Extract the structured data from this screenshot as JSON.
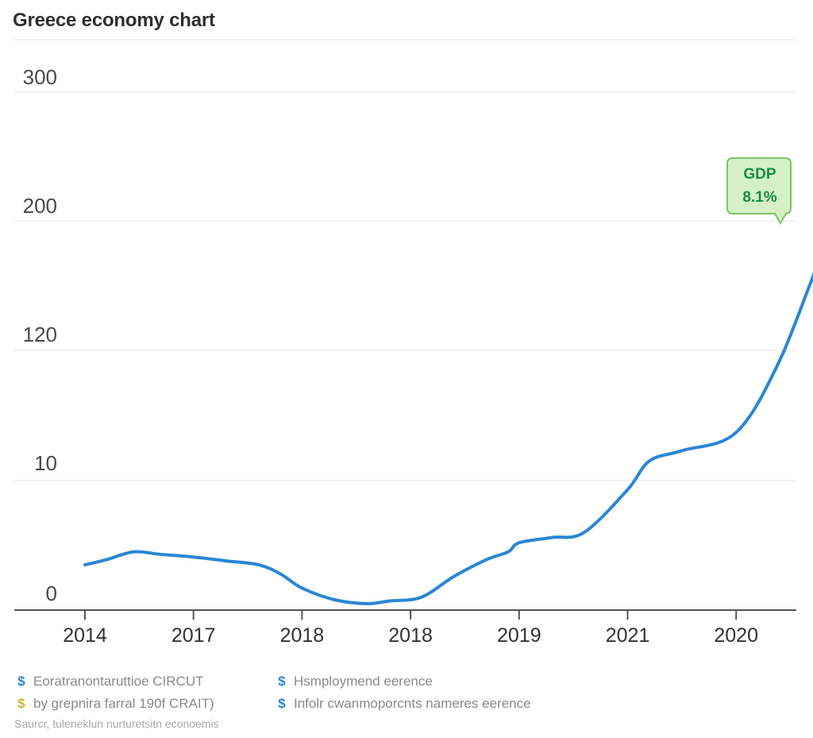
{
  "title": "Greece economy chart",
  "chart_data": {
    "type": "line",
    "title": "Greece economy chart",
    "y_ticks": [
      "300",
      "200",
      "120",
      "10",
      "0"
    ],
    "x_ticks": [
      "2014",
      "2017",
      "2018",
      "2018",
      "2019",
      "2021",
      "2020"
    ],
    "grid": true,
    "series": [
      {
        "name": "GDP",
        "color": "#2b86d4",
        "values": [
          [
            0,
            0.35
          ],
          [
            0.2,
            0.39
          ],
          [
            0.45,
            0.45
          ],
          [
            0.7,
            0.43
          ],
          [
            1.0,
            0.41
          ],
          [
            1.3,
            0.38
          ],
          [
            1.6,
            0.35
          ],
          [
            1.8,
            0.28
          ],
          [
            2.0,
            0.17
          ],
          [
            2.3,
            0.08
          ],
          [
            2.6,
            0.05
          ],
          [
            2.8,
            0.07
          ],
          [
            3.1,
            0.1
          ],
          [
            3.4,
            0.26
          ],
          [
            3.7,
            0.39
          ],
          [
            3.9,
            0.45
          ],
          [
            4.0,
            0.52
          ],
          [
            4.3,
            0.56
          ],
          [
            4.6,
            0.6
          ],
          [
            5.0,
            0.93
          ],
          [
            5.2,
            1.15
          ],
          [
            5.5,
            1.23
          ],
          [
            6.0,
            1.37
          ],
          [
            6.4,
            1.92
          ],
          [
            6.8,
            2.75
          ],
          [
            7.0,
            2.9
          ],
          [
            7.3,
            2.88
          ],
          [
            7.6,
            2.88
          ]
        ]
      }
    ],
    "annotation": {
      "label": "GDP",
      "value": "8.1%"
    }
  },
  "legend": [
    {
      "marker": "$",
      "color": "#2b86d4",
      "text": "Eoratranontaruttioe CIRCUT"
    },
    {
      "marker": "$",
      "color": "#c8b23a",
      "text": "by grepnira farral 190f CRAIT)"
    },
    {
      "marker": "$",
      "color": "#2b86d4",
      "text": "Hsmploymend eerence"
    },
    {
      "marker": "$",
      "color": "#2b86d4",
      "text": "Infolr cwanmoporcnts nameres eerence"
    }
  ],
  "source": "Saurcr, tuleneklun nurturetsitn econoemis",
  "colors": {
    "line": "#2b86d4",
    "grid": "#e6e6e6",
    "axis": "#555555",
    "callout_bg": "#d4f0c4",
    "callout_border": "#7cc46a",
    "callout_text": "#1a8a47"
  }
}
